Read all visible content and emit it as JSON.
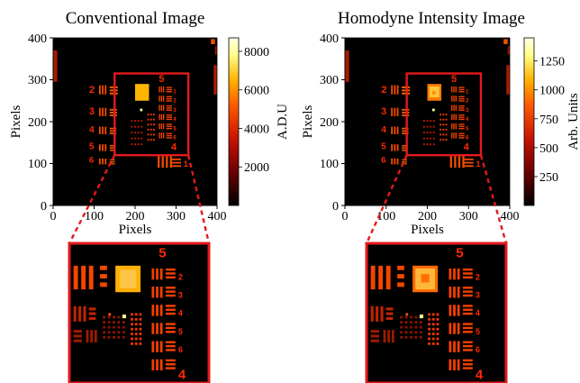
{
  "panels": [
    {
      "title": "Conventional Image",
      "xlabel": "Pixels",
      "ylabel": "Pixels",
      "xticks": [
        "0",
        "100",
        "200",
        "300",
        "400"
      ],
      "yticks": [
        "0",
        "100",
        "200",
        "300",
        "400"
      ],
      "colorbar": {
        "label": "A.D.U",
        "ticks": [
          "2000",
          "4000",
          "6000",
          "8000"
        ],
        "tick_values": [
          2000,
          4000,
          6000,
          8000
        ],
        "range": [
          0,
          8700
        ]
      },
      "group_numbers": [
        "2",
        "3",
        "4",
        "5",
        "6",
        "5",
        "1",
        "4",
        "1"
      ]
    },
    {
      "title": "Homodyne Intensity Image",
      "xlabel": "Pixels",
      "ylabel": "Pixels",
      "xticks": [
        "0",
        "100",
        "200",
        "300",
        "400"
      ],
      "yticks": [
        "0",
        "100",
        "200",
        "300",
        "400"
      ],
      "colorbar": {
        "label": "Arb. Units",
        "ticks": [
          "250",
          "500",
          "750",
          "1000",
          "1250"
        ],
        "tick_values": [
          250,
          500,
          750,
          1000,
          1250
        ],
        "range": [
          0,
          1450
        ]
      },
      "group_numbers": [
        "2",
        "3",
        "4",
        "5",
        "6",
        "5",
        "1",
        "4",
        "1"
      ]
    }
  ],
  "zoom_numbers": [
    "5",
    "2",
    "3",
    "4",
    "5",
    "6",
    "4"
  ],
  "colors": {
    "highlight": "#e41a1c",
    "background": "#000000",
    "colormap": [
      "#000000",
      "#6b0000",
      "#c81400",
      "#ff5a00",
      "#ffb400",
      "#ffff8c",
      "#ffffe6"
    ]
  },
  "scale": {
    "x_range": [
      0,
      400
    ],
    "y_range": [
      0,
      400
    ],
    "roi": {
      "x": [
        150,
        330
      ],
      "y": [
        120,
        315
      ]
    }
  }
}
